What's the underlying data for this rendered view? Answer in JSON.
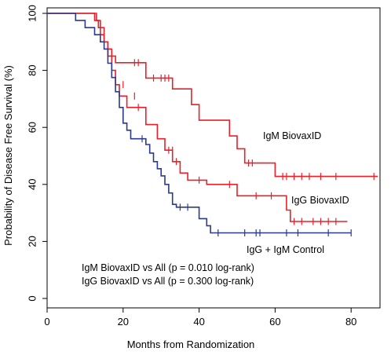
{
  "chart_data": {
    "type": "line",
    "chart_style": "step-survival",
    "xlabel": "Months from Randomization",
    "ylabel": "Probability of Disease Free Survival (%)",
    "xlim": [
      0,
      88
    ],
    "ylim": [
      0,
      100
    ],
    "x_ticks": [
      0,
      20,
      40,
      60,
      80
    ],
    "y_ticks": [
      0,
      20,
      40,
      60,
      80,
      100
    ],
    "grid": false,
    "series": [
      {
        "name": "IgM BiovaxID",
        "color": "#e8202a",
        "steps": [
          [
            0,
            100
          ],
          [
            12.5,
            100
          ],
          [
            12.5,
            97.5
          ],
          [
            13.5,
            97.5
          ],
          [
            13.5,
            95
          ],
          [
            14,
            95
          ],
          [
            14,
            92.5
          ],
          [
            15,
            92.5
          ],
          [
            15,
            90
          ],
          [
            16,
            90
          ],
          [
            16,
            87.5
          ],
          [
            17,
            87.5
          ],
          [
            17,
            85
          ],
          [
            18,
            85
          ],
          [
            18,
            82.7
          ],
          [
            26,
            82.7
          ],
          [
            26,
            77.3
          ],
          [
            33,
            77.3
          ],
          [
            33,
            73.5
          ],
          [
            38,
            73.5
          ],
          [
            38,
            68
          ],
          [
            40,
            68
          ],
          [
            40,
            62.5
          ],
          [
            48,
            62.5
          ],
          [
            48,
            57
          ],
          [
            50,
            57
          ],
          [
            50,
            52.5
          ],
          [
            52,
            52.5
          ],
          [
            52,
            47.5
          ],
          [
            60,
            47.5
          ],
          [
            60,
            42.8
          ],
          [
            87,
            42.8
          ]
        ],
        "censor": [
          [
            23,
            82.7
          ],
          [
            24,
            82.7
          ],
          [
            28,
            77.3
          ],
          [
            30,
            77.3
          ],
          [
            31,
            77.3
          ],
          [
            32,
            77.3
          ],
          [
            53,
            47.5
          ],
          [
            54,
            47.5
          ],
          [
            62,
            42.8
          ],
          [
            63,
            42.8
          ],
          [
            65,
            42.8
          ],
          [
            67,
            42.8
          ],
          [
            69,
            42.8
          ],
          [
            72,
            42.8
          ],
          [
            76,
            42.8
          ],
          [
            86,
            42.8
          ]
        ]
      },
      {
        "name": "IgG BiovaxID",
        "color": "#e8202a",
        "steps": [
          [
            0,
            100
          ],
          [
            13,
            100
          ],
          [
            13,
            97.5
          ],
          [
            14,
            97.5
          ],
          [
            14,
            95
          ],
          [
            15,
            95
          ],
          [
            15,
            90
          ],
          [
            16,
            90
          ],
          [
            16,
            85
          ],
          [
            17,
            85
          ],
          [
            17,
            80
          ],
          [
            18,
            80
          ],
          [
            18,
            75
          ],
          [
            19,
            75
          ],
          [
            19,
            71
          ],
          [
            21,
            71
          ],
          [
            21,
            67
          ],
          [
            26,
            67
          ],
          [
            26,
            61
          ],
          [
            29,
            61
          ],
          [
            29,
            56
          ],
          [
            31,
            56
          ],
          [
            31,
            52
          ],
          [
            33,
            52
          ],
          [
            33,
            48
          ],
          [
            35,
            48
          ],
          [
            35,
            44
          ],
          [
            37,
            44
          ],
          [
            37,
            41.5
          ],
          [
            42,
            41.5
          ],
          [
            42,
            40
          ],
          [
            50,
            40
          ],
          [
            50,
            36
          ],
          [
            63,
            36
          ],
          [
            63,
            31
          ],
          [
            64,
            31
          ],
          [
            64,
            27
          ],
          [
            79,
            27
          ]
        ],
        "censor": [
          [
            20,
            75
          ],
          [
            23,
            71
          ],
          [
            24,
            67
          ],
          [
            32,
            52
          ],
          [
            33,
            52
          ],
          [
            34,
            48
          ],
          [
            40,
            41.5
          ],
          [
            48,
            40
          ],
          [
            55,
            36
          ],
          [
            59,
            36
          ],
          [
            65,
            27
          ],
          [
            67,
            27
          ],
          [
            70,
            27
          ],
          [
            72,
            27
          ],
          [
            74,
            27
          ],
          [
            76,
            27
          ]
        ]
      },
      {
        "name": "IgG + IgM Control",
        "color": "#2b3a8f",
        "steps": [
          [
            0,
            100
          ],
          [
            7.5,
            100
          ],
          [
            7.5,
            97.5
          ],
          [
            10,
            97.5
          ],
          [
            10,
            95
          ],
          [
            12.5,
            95
          ],
          [
            12.5,
            92.5
          ],
          [
            14,
            92.5
          ],
          [
            14,
            90
          ],
          [
            15,
            90
          ],
          [
            15,
            87.5
          ],
          [
            16,
            87.5
          ],
          [
            16,
            82.5
          ],
          [
            17,
            82.5
          ],
          [
            17,
            77.5
          ],
          [
            18,
            77.5
          ],
          [
            18,
            72.5
          ],
          [
            19,
            72.5
          ],
          [
            19,
            67
          ],
          [
            20,
            67
          ],
          [
            20,
            61.5
          ],
          [
            21,
            61.5
          ],
          [
            21,
            59
          ],
          [
            22,
            59
          ],
          [
            22,
            56
          ],
          [
            26,
            56
          ],
          [
            26,
            54
          ],
          [
            27,
            54
          ],
          [
            27,
            51
          ],
          [
            28,
            51
          ],
          [
            28,
            48
          ],
          [
            29,
            48
          ],
          [
            29,
            45.5
          ],
          [
            30,
            45.5
          ],
          [
            30,
            43
          ],
          [
            31,
            43
          ],
          [
            31,
            40
          ],
          [
            32,
            40
          ],
          [
            32,
            37
          ],
          [
            33,
            37
          ],
          [
            33,
            33
          ],
          [
            34,
            33
          ],
          [
            34,
            32
          ],
          [
            40,
            32
          ],
          [
            40,
            28
          ],
          [
            42,
            28
          ],
          [
            42,
            25.5
          ],
          [
            43,
            25.5
          ],
          [
            43,
            23
          ],
          [
            80,
            23
          ]
        ],
        "censor": [
          [
            25,
            56
          ],
          [
            35,
            32
          ],
          [
            37,
            32
          ],
          [
            45,
            23
          ],
          [
            52,
            23
          ],
          [
            55,
            23
          ],
          [
            56,
            23
          ],
          [
            63,
            23
          ],
          [
            66,
            23
          ],
          [
            74,
            23
          ],
          [
            80,
            23
          ]
        ]
      }
    ],
    "annotations": [
      "IgM BiovaxID vs All (p = 0.010 log-rank)",
      "IgG BiovaxID vs All (p = 0.300 log-rank)"
    ]
  }
}
